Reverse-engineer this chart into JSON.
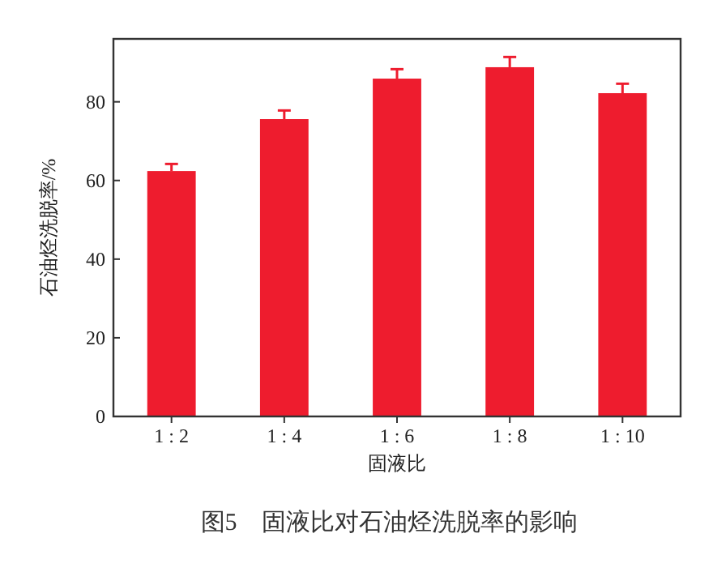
{
  "chart_data": {
    "type": "bar",
    "title": "图5　固液比对石油烃洗脱率的影响",
    "xlabel": "固液比",
    "ylabel": "石油烃洗脱率/%",
    "categories": [
      "1 : 2",
      "1 : 4",
      "1 : 6",
      "1 : 8",
      "1 : 10"
    ],
    "values": [
      62.4,
      75.6,
      85.9,
      88.8,
      82.2
    ],
    "errors": [
      [
        62.4,
        64.2
      ],
      [
        75.6,
        77.8
      ],
      [
        85.9,
        88.3
      ],
      [
        88.8,
        91.4
      ],
      [
        82.2,
        84.6
      ]
    ],
    "color": "#ee1c2e",
    "ylim": [
      0,
      96
    ],
    "yticks": [
      0,
      20,
      40,
      60,
      80
    ],
    "grid": false
  }
}
